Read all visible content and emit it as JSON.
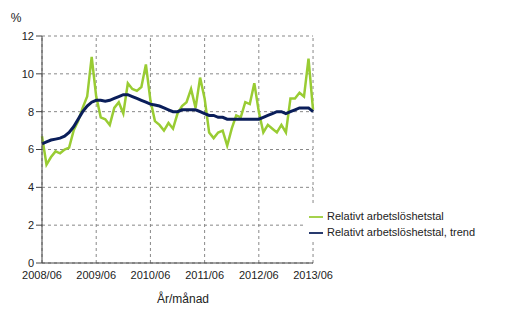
{
  "chart_data": {
    "type": "line",
    "y_label": "%",
    "x_label": "År/månad",
    "categories": [
      "2008/06",
      null,
      null,
      null,
      null,
      null,
      null,
      null,
      null,
      null,
      null,
      null,
      "2009/06",
      null,
      null,
      null,
      null,
      null,
      null,
      null,
      null,
      null,
      null,
      null,
      "2010/06",
      null,
      null,
      null,
      null,
      null,
      null,
      null,
      null,
      null,
      null,
      null,
      "2011/06",
      null,
      null,
      null,
      null,
      null,
      null,
      null,
      null,
      null,
      null,
      null,
      "2012/06",
      null,
      null,
      null,
      null,
      null,
      null,
      null,
      null,
      null,
      null,
      null,
      "2013/06"
    ],
    "series": [
      {
        "name": "Relativt arbetslöshetstal",
        "color": "#99cc33",
        "values": [
          6.7,
          5.2,
          5.6,
          5.9,
          5.8,
          6.0,
          6.1,
          7.0,
          7.5,
          8.2,
          8.8,
          10.9,
          8.8,
          7.7,
          7.6,
          7.3,
          8.2,
          8.5,
          7.9,
          9.5,
          9.2,
          9.1,
          9.3,
          10.5,
          8.6,
          7.5,
          7.3,
          7.0,
          7.4,
          7.1,
          7.9,
          8.3,
          8.5,
          9.2,
          8.2,
          9.8,
          8.7,
          6.9,
          6.6,
          6.9,
          7.0,
          6.2,
          7.1,
          7.8,
          7.7,
          8.5,
          8.4,
          9.5,
          8.0,
          6.9,
          7.3,
          7.1,
          6.9,
          7.3,
          6.9,
          8.7,
          8.7,
          9.0,
          8.8,
          10.8,
          8.1
        ]
      },
      {
        "name": "Relativt arbetslöshetstal, trend",
        "color": "#0a1e5a",
        "values": [
          6.3,
          6.4,
          6.5,
          6.55,
          6.6,
          6.7,
          6.9,
          7.2,
          7.6,
          8.0,
          8.3,
          8.5,
          8.6,
          8.6,
          8.55,
          8.6,
          8.7,
          8.8,
          8.9,
          8.9,
          8.8,
          8.7,
          8.6,
          8.5,
          8.4,
          8.35,
          8.3,
          8.2,
          8.1,
          8.0,
          8.0,
          8.1,
          8.1,
          8.1,
          8.1,
          8.0,
          7.9,
          7.8,
          7.8,
          7.7,
          7.7,
          7.6,
          7.6,
          7.6,
          7.6,
          7.6,
          7.6,
          7.6,
          7.6,
          7.7,
          7.8,
          7.9,
          8.0,
          8.0,
          7.9,
          8.0,
          8.1,
          8.2,
          8.2,
          8.2,
          8.0
        ]
      }
    ],
    "ylim": [
      0,
      12
    ],
    "yticks": [
      0,
      2,
      4,
      6,
      8,
      10,
      12
    ],
    "grid": true,
    "legend": "lower right"
  }
}
